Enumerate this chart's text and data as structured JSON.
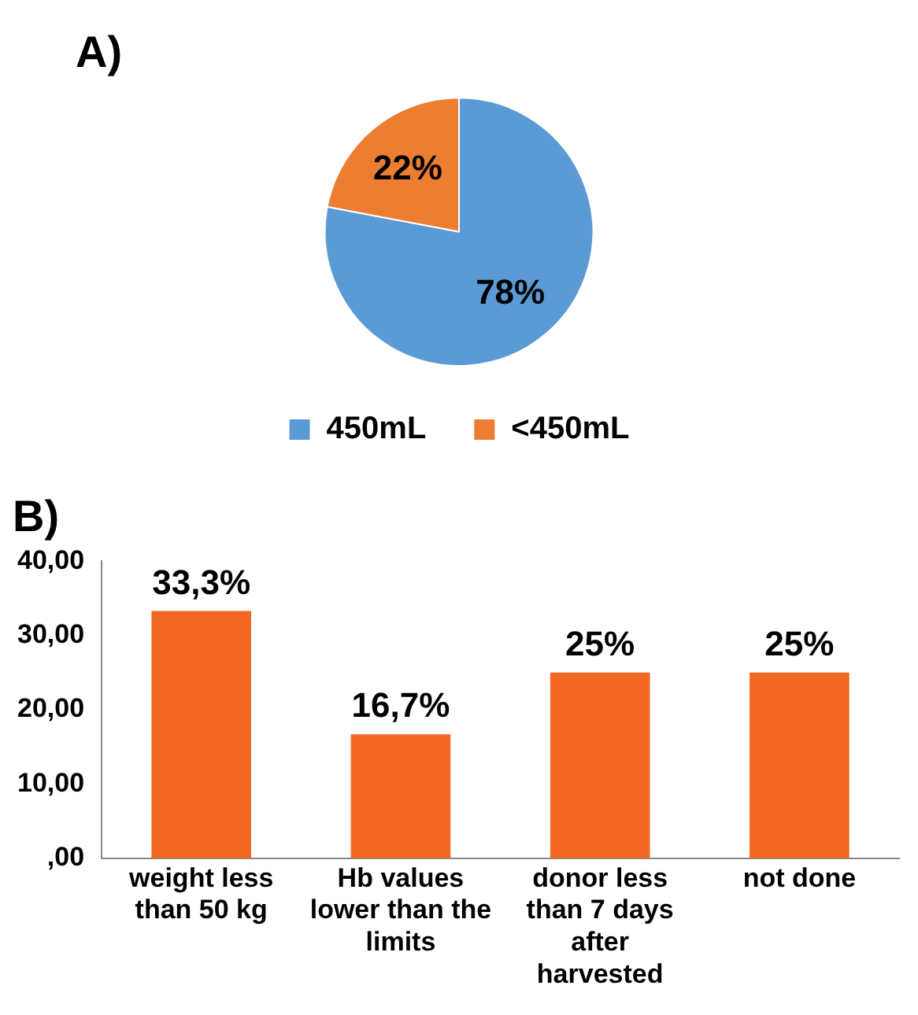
{
  "chart_data": [
    {
      "type": "pie",
      "title": "A)",
      "categories": [
        "450mL",
        "<450mL"
      ],
      "values": [
        78,
        22
      ],
      "colors": [
        "#5b9bd5",
        "#ed7d31"
      ],
      "value_labels": [
        "78%",
        "22%"
      ],
      "legend": "bottom"
    },
    {
      "type": "bar",
      "title": "B)",
      "categories": [
        "weight less than 50 kg",
        "Hb values lower than the limits",
        "donor less than 7 days after harvested",
        "not done"
      ],
      "values": [
        33.3,
        16.7,
        25,
        25
      ],
      "color": "#f26722",
      "value_labels": [
        "33,3%",
        "16,7%",
        "25%",
        "25%"
      ],
      "ylim": [
        0,
        40
      ],
      "yticks": [
        {
          "value": 0,
          "label": ",00"
        },
        {
          "value": 10,
          "label": "10,00"
        },
        {
          "value": 20,
          "label": "20,00"
        },
        {
          "value": 30,
          "label": "30,00"
        },
        {
          "value": 40,
          "label": "40,00"
        }
      ],
      "grid": false
    }
  ]
}
